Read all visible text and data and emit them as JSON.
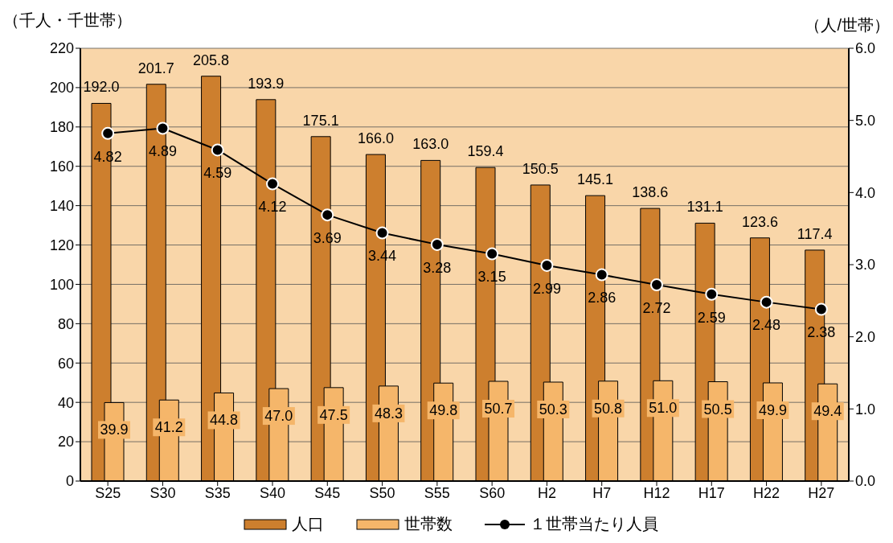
{
  "chart_data": {
    "type": "bar",
    "ylabel": "（千人・千世帯）",
    "y2label": "（人/世帯）",
    "categories": [
      "S25",
      "S30",
      "S35",
      "S40",
      "S45",
      "S50",
      "S55",
      "S60",
      "H2",
      "H7",
      "H12",
      "H17",
      "H22",
      "H27"
    ],
    "series": [
      {
        "name": "人口",
        "color": "#cd7f2e",
        "values": [
          192.0,
          201.7,
          205.8,
          193.9,
          175.1,
          166.0,
          163.0,
          159.4,
          150.5,
          145.1,
          138.6,
          131.1,
          123.6,
          117.4
        ],
        "value_labels": [
          "192.0",
          "201.7",
          "205.8",
          "193.9",
          "175.1",
          "166.0",
          "163.0",
          "159.4",
          "150.5",
          "145.1",
          "138.6",
          "131.1",
          "123.6",
          "117.4"
        ]
      },
      {
        "name": "世帯数",
        "color": "#f5b66a",
        "values": [
          39.9,
          41.2,
          44.8,
          47.0,
          47.5,
          48.3,
          49.8,
          50.7,
          50.3,
          50.8,
          51.0,
          50.5,
          49.9,
          49.4
        ],
        "value_labels": [
          "39.9",
          "41.2",
          "44.8",
          "47.0",
          "47.5",
          "48.3",
          "49.8",
          "50.7",
          "50.3",
          "50.8",
          "51.0",
          "50.5",
          "49.9",
          "49.4"
        ]
      },
      {
        "name": "１世帯当たり人員",
        "type": "line",
        "axis": "y2",
        "color": "#000000",
        "values": [
          4.82,
          4.89,
          4.59,
          4.12,
          3.69,
          3.44,
          3.28,
          3.15,
          2.99,
          2.86,
          2.72,
          2.59,
          2.48,
          2.38
        ],
        "value_labels": [
          "4.82",
          "4.89",
          "4.59",
          "4.12",
          "3.69",
          "3.44",
          "3.28",
          "3.15",
          "2.99",
          "2.86",
          "2.72",
          "2.59",
          "2.48",
          "2.38"
        ]
      }
    ],
    "ylim": [
      0,
      220
    ],
    "yticks": [
      0,
      20,
      40,
      60,
      80,
      100,
      120,
      140,
      160,
      180,
      200,
      220
    ],
    "y2lim": [
      0,
      6
    ],
    "y2ticks": [
      {
        "value": 0,
        "label": "0.0"
      },
      {
        "value": 1,
        "label": "1.0"
      },
      {
        "value": 2,
        "label": "2.0"
      },
      {
        "value": 3,
        "label": "3.0"
      },
      {
        "value": 4,
        "label": "4.0"
      },
      {
        "value": 5,
        "label": "5.0"
      },
      {
        "value": 6,
        "label": "6.0"
      }
    ],
    "grid": "y",
    "legend": "bottom",
    "marker": "circle",
    "line_style": "solid"
  }
}
